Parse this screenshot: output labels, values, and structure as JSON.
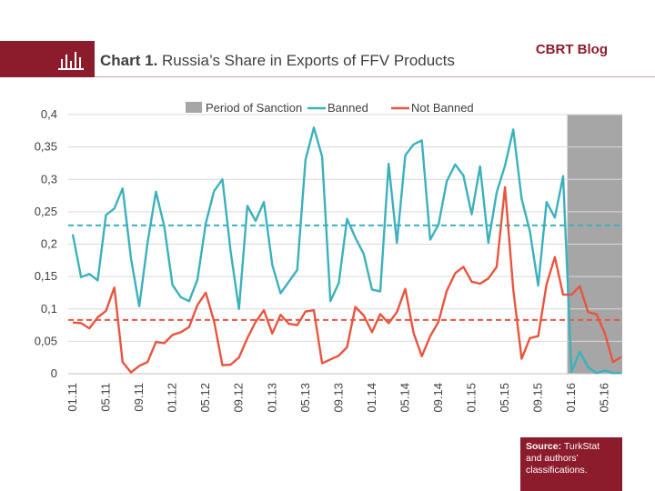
{
  "header": {
    "chart_number": "Chart 1.",
    "title": "Russia’s Share in Exports of FFV Products",
    "blog": "CBRT Blog"
  },
  "source": {
    "label": "Source:",
    "text": "TurkStat and authors’ classifications."
  },
  "colors": {
    "banned": "#3bb1bd",
    "not_banned": "#e8553f",
    "sanction": "#a6a6a6",
    "brand": "#8c1c2c"
  },
  "chart_data": {
    "type": "line",
    "title": "",
    "xlabel": "",
    "ylabel": "",
    "ylim": [
      0,
      0.4
    ],
    "y_ticks": [
      "0",
      "0,05",
      "0,1",
      "0,15",
      "0,2",
      "0,25",
      "0,3",
      "0,35",
      "0,4"
    ],
    "x_ticks": [
      "01.11",
      "05.11",
      "09.11",
      "01.12",
      "05.12",
      "09.12",
      "01.13",
      "05.13",
      "09.13",
      "01.14",
      "05.14",
      "09.14",
      "01.15",
      "05.15",
      "09.15",
      "01.16",
      "05.16"
    ],
    "x_start": "01.11",
    "x_end": "08.16",
    "grid": "horizontal",
    "legend": "top",
    "sanction_period": {
      "name": "Period of Sanction",
      "from": "01.16",
      "to": "08.16"
    },
    "series": [
      {
        "name": "Banned",
        "mean_line": 0.229,
        "values": [
          0.215,
          0.149,
          0.154,
          0.144,
          0.245,
          0.255,
          0.286,
          0.178,
          0.104,
          0.202,
          0.281,
          0.228,
          0.137,
          0.118,
          0.112,
          0.145,
          0.232,
          0.282,
          0.3,
          0.188,
          0.1,
          0.259,
          0.236,
          0.265,
          0.168,
          0.124,
          0.142,
          0.16,
          0.33,
          0.38,
          0.335,
          0.112,
          0.14,
          0.239,
          0.21,
          0.185,
          0.13,
          0.127,
          0.324,
          0.202,
          0.337,
          0.354,
          0.36,
          0.207,
          0.23,
          0.297,
          0.323,
          0.306,
          0.246,
          0.32,
          0.202,
          0.28,
          0.321,
          0.377,
          0.27,
          0.22,
          0.136,
          0.265,
          0.241,
          0.305,
          0.003,
          0.034,
          0.01,
          0.001,
          0.005,
          0.001,
          0.001
        ]
      },
      {
        "name": "Not Banned",
        "mean_line": 0.083,
        "values": [
          0.079,
          0.078,
          0.07,
          0.087,
          0.097,
          0.133,
          0.018,
          0.002,
          0.012,
          0.018,
          0.049,
          0.047,
          0.06,
          0.064,
          0.072,
          0.106,
          0.125,
          0.081,
          0.013,
          0.014,
          0.025,
          0.055,
          0.08,
          0.098,
          0.062,
          0.091,
          0.077,
          0.075,
          0.096,
          0.098,
          0.016,
          0.022,
          0.028,
          0.041,
          0.103,
          0.09,
          0.064,
          0.092,
          0.078,
          0.095,
          0.131,
          0.063,
          0.027,
          0.058,
          0.08,
          0.128,
          0.155,
          0.165,
          0.142,
          0.139,
          0.147,
          0.165,
          0.288,
          0.13,
          0.023,
          0.055,
          0.058,
          0.138,
          0.18,
          0.122,
          0.122,
          0.135,
          0.095,
          0.092,
          0.063,
          0.018,
          0.026
        ]
      }
    ]
  }
}
